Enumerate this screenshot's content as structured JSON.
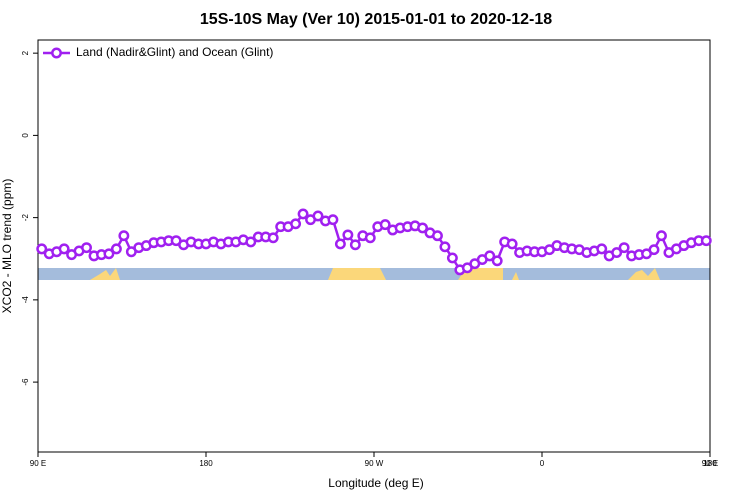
{
  "chart_data": {
    "type": "line",
    "title": "15S-10S May (Ver 10)   2015-01-01 to 2020-12-18",
    "x_label": "Longitude (deg E)",
    "y_label": "XCO2 - MLO trend (ppm)",
    "xlim": [
      90,
      450
    ],
    "xticks": [
      {
        "value": 90,
        "label": "90 E"
      },
      {
        "value": 180,
        "label": "180"
      },
      {
        "value": 270,
        "label": "90 W"
      },
      {
        "value": 360,
        "label": "0"
      },
      {
        "value": 450,
        "label": "90 E"
      },
      {
        "value": 540,
        "label": "180"
      }
    ],
    "ylim": [
      -7.7,
      2.32
    ],
    "yticks": [
      2,
      0,
      -2,
      -4,
      -6
    ],
    "legend": "top-left",
    "x": [
      92,
      96,
      100,
      104,
      108,
      112,
      116,
      120,
      124,
      128,
      132,
      136,
      140,
      144,
      148,
      152,
      156,
      160,
      164,
      168,
      172,
      176,
      180,
      184,
      188,
      192,
      196,
      200,
      204,
      208,
      212,
      216,
      220,
      224,
      228,
      232,
      236,
      240,
      244,
      248,
      252,
      256,
      260,
      264,
      268,
      272,
      276,
      280,
      284,
      288,
      292,
      296,
      300,
      304,
      308,
      312,
      316,
      320,
      324,
      328,
      332,
      336,
      340,
      344,
      348,
      352,
      356,
      360,
      364,
      368,
      372,
      376,
      380,
      384,
      388,
      392,
      396,
      400,
      404,
      408,
      412,
      416,
      420,
      424,
      428,
      432,
      436,
      440,
      444,
      448
    ],
    "series": [
      {
        "name": "Land (Nadir&Glint) and Ocean (Glint)",
        "color": "#a020f0",
        "values": [
          -2.76,
          -2.88,
          -2.83,
          -2.76,
          -2.9,
          -2.81,
          -2.73,
          -2.93,
          -2.9,
          -2.88,
          -2.76,
          -2.44,
          -2.83,
          -2.73,
          -2.68,
          -2.61,
          -2.59,
          -2.56,
          -2.56,
          -2.66,
          -2.59,
          -2.64,
          -2.64,
          -2.59,
          -2.64,
          -2.59,
          -2.59,
          -2.54,
          -2.59,
          -2.47,
          -2.47,
          -2.49,
          -2.22,
          -2.22,
          -2.15,
          -1.91,
          -2.05,
          -1.96,
          -2.08,
          -2.05,
          -2.64,
          -2.42,
          -2.66,
          -2.44,
          -2.49,
          -2.22,
          -2.17,
          -2.3,
          -2.25,
          -2.22,
          -2.2,
          -2.25,
          -2.37,
          -2.44,
          -2.71,
          -2.98,
          -3.27,
          -3.22,
          -3.12,
          -3.02,
          -2.93,
          -3.05,
          -2.59,
          -2.64,
          -2.85,
          -2.81,
          -2.83,
          -2.83,
          -2.78,
          -2.68,
          -2.73,
          -2.76,
          -2.78,
          -2.85,
          -2.81,
          -2.76,
          -2.93,
          -2.85,
          -2.73,
          -2.93,
          -2.9,
          -2.88,
          -2.78,
          -2.44,
          -2.85,
          -2.76,
          -2.68,
          -2.61,
          -2.56,
          -2.56
        ]
      }
    ]
  }
}
